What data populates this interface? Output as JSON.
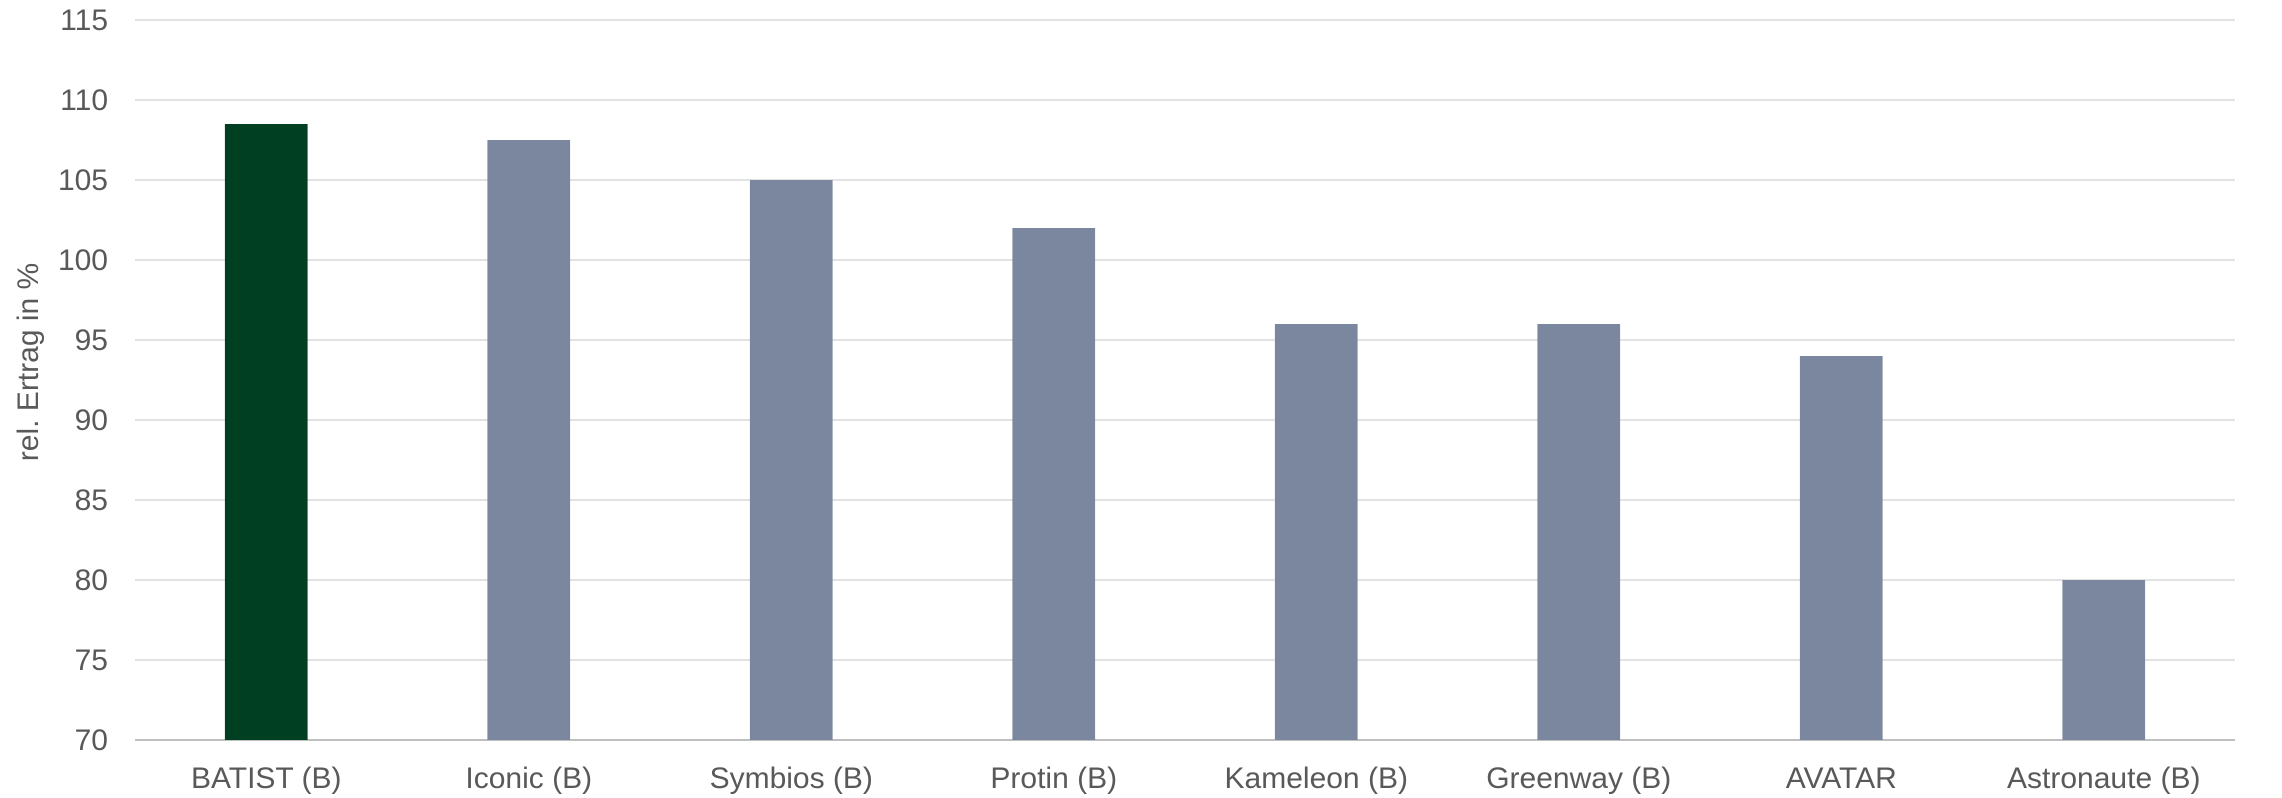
{
  "chart_data": {
    "type": "bar",
    "title": "",
    "xlabel": "",
    "ylabel": "rel. Ertrag in %",
    "categories": [
      "BATIST (B)",
      "Iconic (B)",
      "Symbios (B)",
      "Protin (B)",
      "Kameleon (B)",
      "Greenway (B)",
      "AVATAR",
      "Astronaute (B)"
    ],
    "values": [
      108.5,
      107.5,
      105,
      102,
      96,
      96,
      94,
      80
    ],
    "bar_colors": [
      "#003f22",
      "#7b879e",
      "#7b879e",
      "#7b879e",
      "#7b879e",
      "#7b879e",
      "#7b879e",
      "#7b879e"
    ],
    "ylim": [
      70,
      115
    ],
    "yticks": [
      70,
      75,
      80,
      85,
      90,
      95,
      100,
      105,
      110,
      115
    ],
    "grid": true,
    "legend": "none"
  }
}
